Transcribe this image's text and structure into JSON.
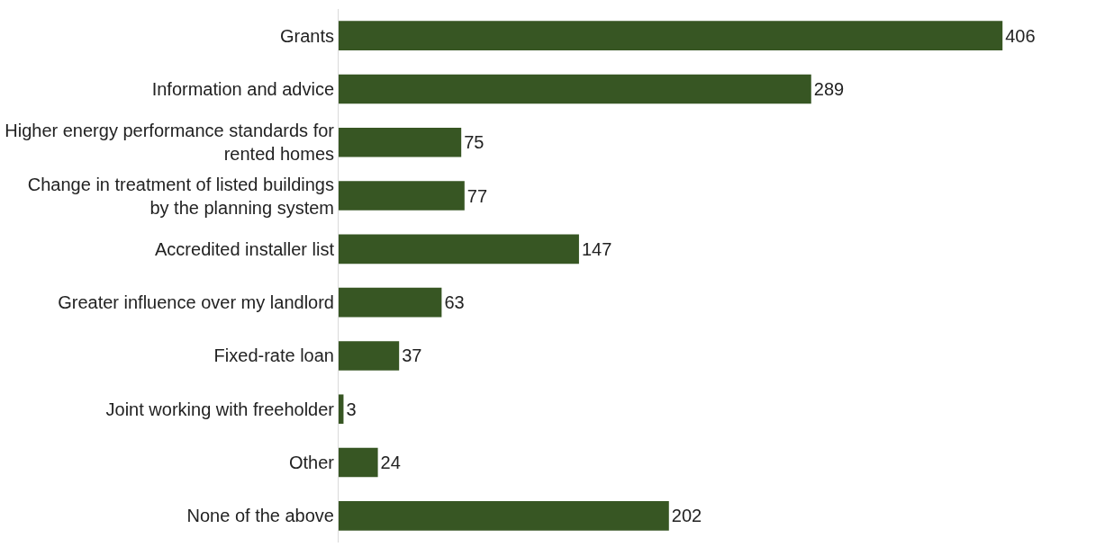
{
  "chart_data": {
    "type": "bar",
    "orientation": "horizontal",
    "categories": [
      "Grants",
      "Information and advice",
      "Higher energy performance standards for rented homes",
      "Change in treatment of listed buildings by the planning system",
      "Accredited installer list",
      "Greater influence over my landlord",
      "Fixed-rate loan",
      "Joint working with freeholder",
      "Other",
      "None of the above"
    ],
    "values": [
      406,
      289,
      75,
      77,
      147,
      63,
      37,
      3,
      24,
      202
    ],
    "color": "#375623",
    "data_labels": true
  }
}
